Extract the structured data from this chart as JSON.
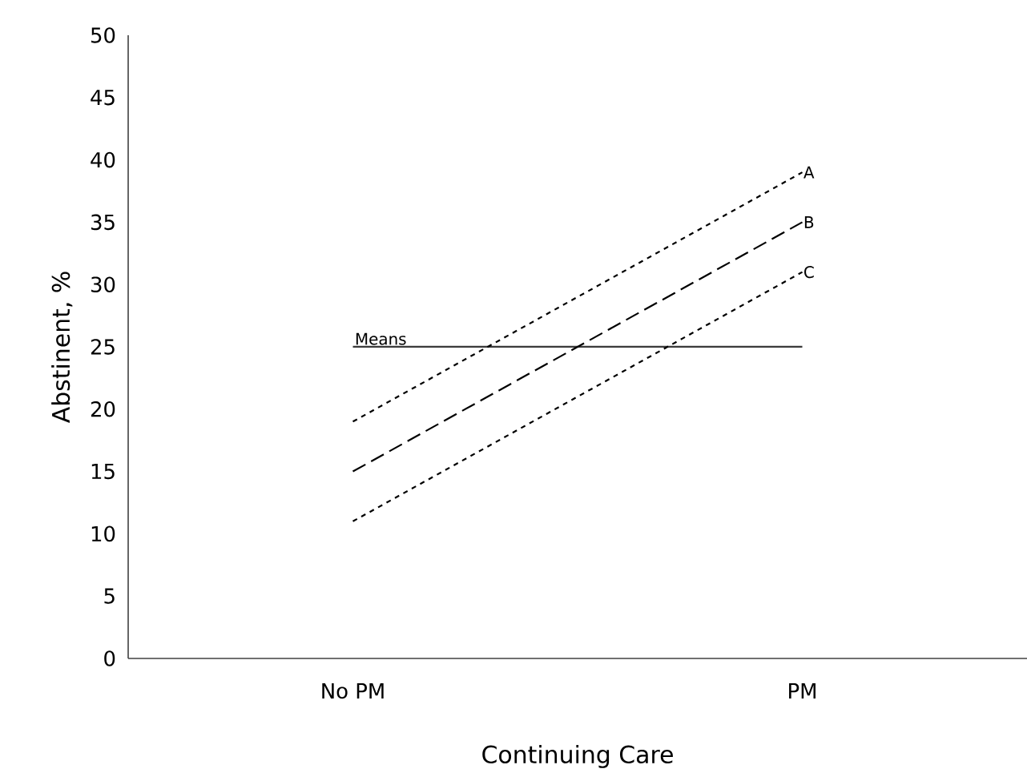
{
  "chart_data": {
    "type": "line",
    "xlabel": "Continuing Care",
    "ylabel": "Abstinent, %",
    "categories": [
      "No PM",
      "PM"
    ],
    "series": [
      {
        "name": "Means",
        "color": "#3a3a3a",
        "values": [
          25,
          25
        ],
        "line_style": "solid"
      },
      {
        "name": "A",
        "color": "#000000",
        "values": [
          19,
          39
        ],
        "line_style": "dotted"
      },
      {
        "name": "B",
        "color": "#000000",
        "values": [
          15,
          35
        ],
        "line_style": "dashed"
      },
      {
        "name": "C",
        "color": "#000000",
        "values": [
          11,
          31
        ],
        "line_style": "dotted"
      }
    ],
    "ylim": [
      0,
      50
    ],
    "yticks": [
      0,
      5,
      10,
      15,
      20,
      25,
      30,
      35,
      40,
      45,
      50
    ],
    "grid": false,
    "legend": false,
    "marker": "none"
  }
}
